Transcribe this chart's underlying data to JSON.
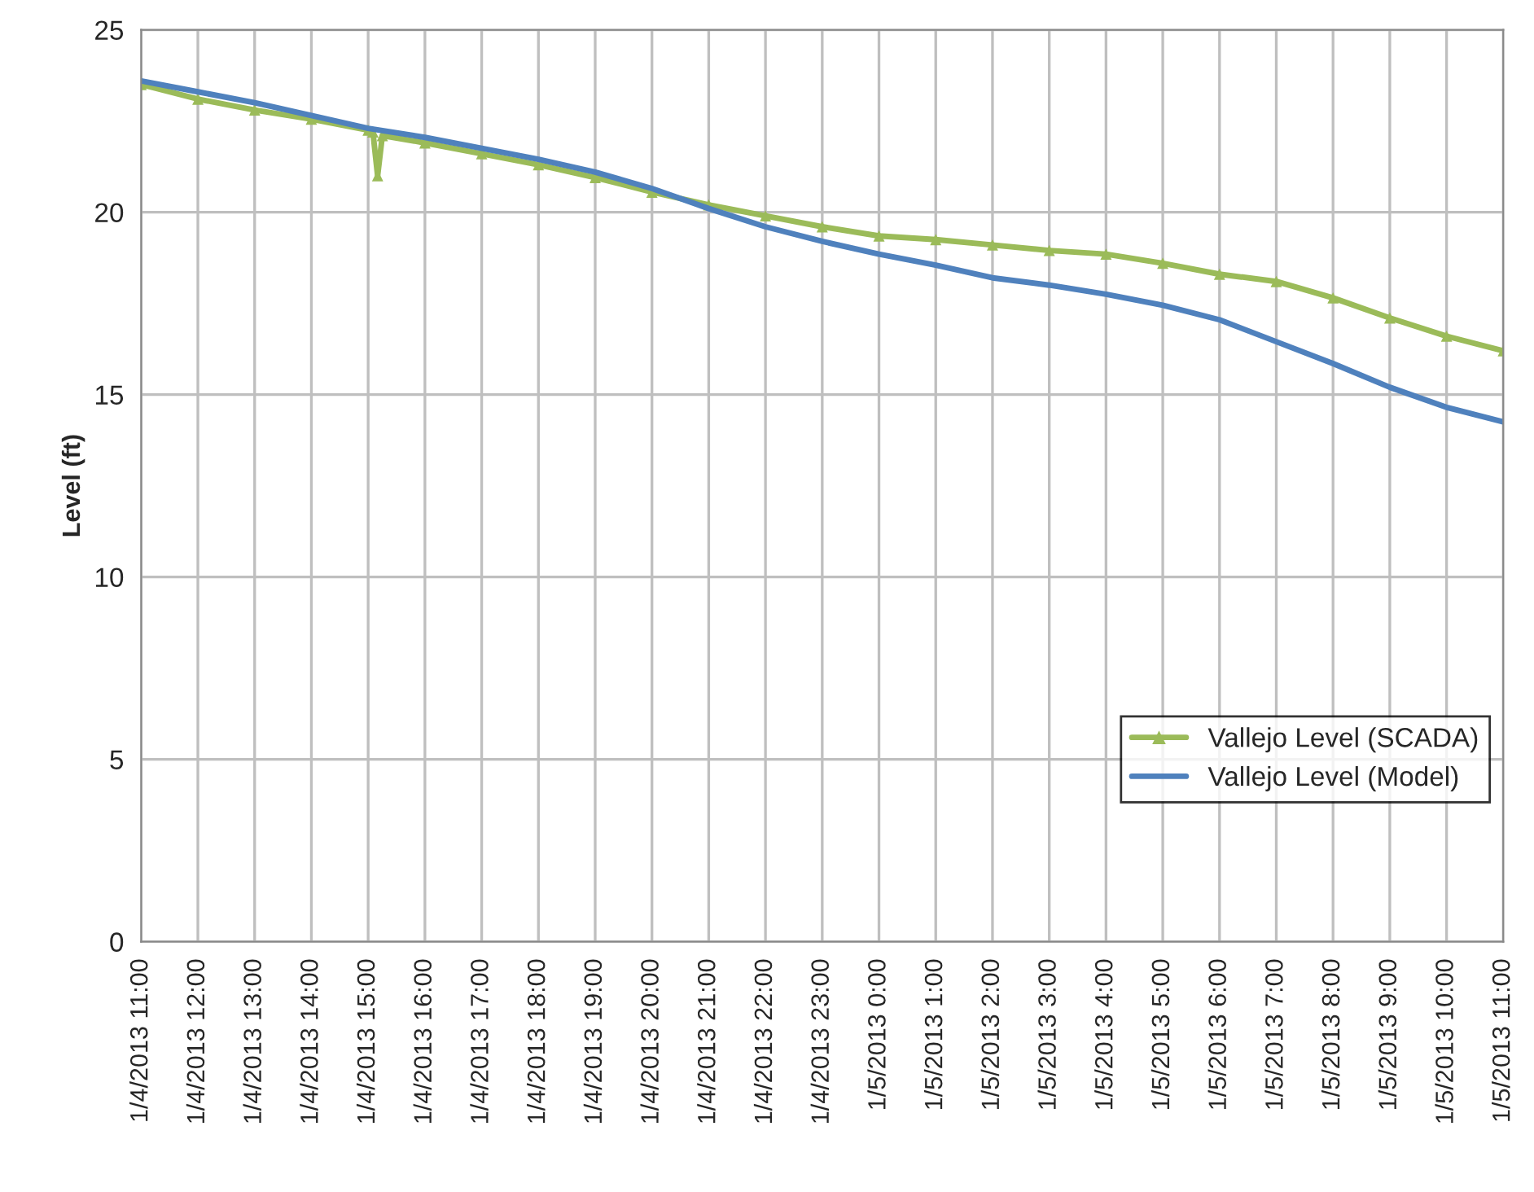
{
  "chart_data": {
    "type": "line",
    "ylabel": "Level (ft)",
    "xlim": [
      "2013-01-04T11:00",
      "2013-01-05T11:00"
    ],
    "xticks": [
      {
        "value": "2013-01-04T11:00",
        "label": "1/4/2013 11:00"
      },
      {
        "value": "2013-01-04T12:00",
        "label": "1/4/2013 12:00"
      },
      {
        "value": "2013-01-04T13:00",
        "label": "1/4/2013 13:00"
      },
      {
        "value": "2013-01-04T14:00",
        "label": "1/4/2013 14:00"
      },
      {
        "value": "2013-01-04T15:00",
        "label": "1/4/2013 15:00"
      },
      {
        "value": "2013-01-04T16:00",
        "label": "1/4/2013 16:00"
      },
      {
        "value": "2013-01-04T17:00",
        "label": "1/4/2013 17:00"
      },
      {
        "value": "2013-01-04T18:00",
        "label": "1/4/2013 18:00"
      },
      {
        "value": "2013-01-04T19:00",
        "label": "1/4/2013 19:00"
      },
      {
        "value": "2013-01-04T20:00",
        "label": "1/4/2013 20:00"
      },
      {
        "value": "2013-01-04T21:00",
        "label": "1/4/2013 21:00"
      },
      {
        "value": "2013-01-04T22:00",
        "label": "1/4/2013 22:00"
      },
      {
        "value": "2013-01-04T23:00",
        "label": "1/4/2013 23:00"
      },
      {
        "value": "2013-01-05T00:00",
        "label": "1/5/2013 0:00"
      },
      {
        "value": "2013-01-05T01:00",
        "label": "1/5/2013 1:00"
      },
      {
        "value": "2013-01-05T02:00",
        "label": "1/5/2013 2:00"
      },
      {
        "value": "2013-01-05T03:00",
        "label": "1/5/2013 3:00"
      },
      {
        "value": "2013-01-05T04:00",
        "label": "1/5/2013 4:00"
      },
      {
        "value": "2013-01-05T05:00",
        "label": "1/5/2013 5:00"
      },
      {
        "value": "2013-01-05T06:00",
        "label": "1/5/2013 6:00"
      },
      {
        "value": "2013-01-05T07:00",
        "label": "1/5/2013 7:00"
      },
      {
        "value": "2013-01-05T08:00",
        "label": "1/5/2013 8:00"
      },
      {
        "value": "2013-01-05T09:00",
        "label": "1/5/2013 9:00"
      },
      {
        "value": "2013-01-05T10:00",
        "label": "1/5/2013 10:00"
      },
      {
        "value": "2013-01-05T11:00",
        "label": "1/5/2013 11:00"
      }
    ],
    "ylim": [
      0,
      25
    ],
    "yticks": [
      0,
      5,
      10,
      15,
      20,
      25
    ],
    "grid": true,
    "legend": "right",
    "series": [
      {
        "name": "Vallejo Level (SCADA)",
        "color": "#9bbb59",
        "marker": "triangle",
        "x": [
          "2013-01-04T11:00",
          "2013-01-04T12:00",
          "2013-01-04T13:00",
          "2013-01-04T14:00",
          "2013-01-04T15:00",
          "2013-01-04T15:05",
          "2013-01-04T15:10",
          "2013-01-04T15:15",
          "2013-01-04T16:00",
          "2013-01-04T17:00",
          "2013-01-04T18:00",
          "2013-01-04T19:00",
          "2013-01-04T20:00",
          "2013-01-04T21:00",
          "2013-01-04T22:00",
          "2013-01-04T23:00",
          "2013-01-05T00:00",
          "2013-01-05T01:00",
          "2013-01-05T02:00",
          "2013-01-05T03:00",
          "2013-01-05T04:00",
          "2013-01-05T05:00",
          "2013-01-05T06:00",
          "2013-01-05T07:00",
          "2013-01-05T08:00",
          "2013-01-05T09:00",
          "2013-01-05T10:00",
          "2013-01-05T11:00"
        ],
        "values": [
          23.5,
          23.1,
          22.8,
          22.55,
          22.25,
          22.2,
          21.0,
          22.1,
          21.9,
          21.6,
          21.3,
          20.95,
          20.55,
          20.2,
          19.9,
          19.6,
          19.35,
          19.25,
          19.1,
          18.95,
          18.85,
          18.6,
          18.3,
          18.1,
          17.65,
          17.1,
          16.6,
          16.2
        ]
      },
      {
        "name": "Vallejo Level (Model)",
        "color": "#4f81bd",
        "marker": "none",
        "x": [
          "2013-01-04T11:00",
          "2013-01-04T12:00",
          "2013-01-04T13:00",
          "2013-01-04T14:00",
          "2013-01-04T15:00",
          "2013-01-04T16:00",
          "2013-01-04T17:00",
          "2013-01-04T18:00",
          "2013-01-04T19:00",
          "2013-01-04T20:00",
          "2013-01-04T21:00",
          "2013-01-04T22:00",
          "2013-01-04T23:00",
          "2013-01-05T00:00",
          "2013-01-05T01:00",
          "2013-01-05T02:00",
          "2013-01-05T03:00",
          "2013-01-05T04:00",
          "2013-01-05T05:00",
          "2013-01-05T06:00",
          "2013-01-05T07:00",
          "2013-01-05T08:00",
          "2013-01-05T09:00",
          "2013-01-05T10:00",
          "2013-01-05T11:00"
        ],
        "values": [
          23.6,
          23.3,
          23.0,
          22.65,
          22.3,
          22.05,
          21.75,
          21.45,
          21.1,
          20.65,
          20.1,
          19.6,
          19.2,
          18.85,
          18.55,
          18.2,
          18.0,
          17.75,
          17.45,
          17.05,
          16.45,
          15.85,
          15.2,
          14.65,
          14.25
        ]
      }
    ]
  }
}
